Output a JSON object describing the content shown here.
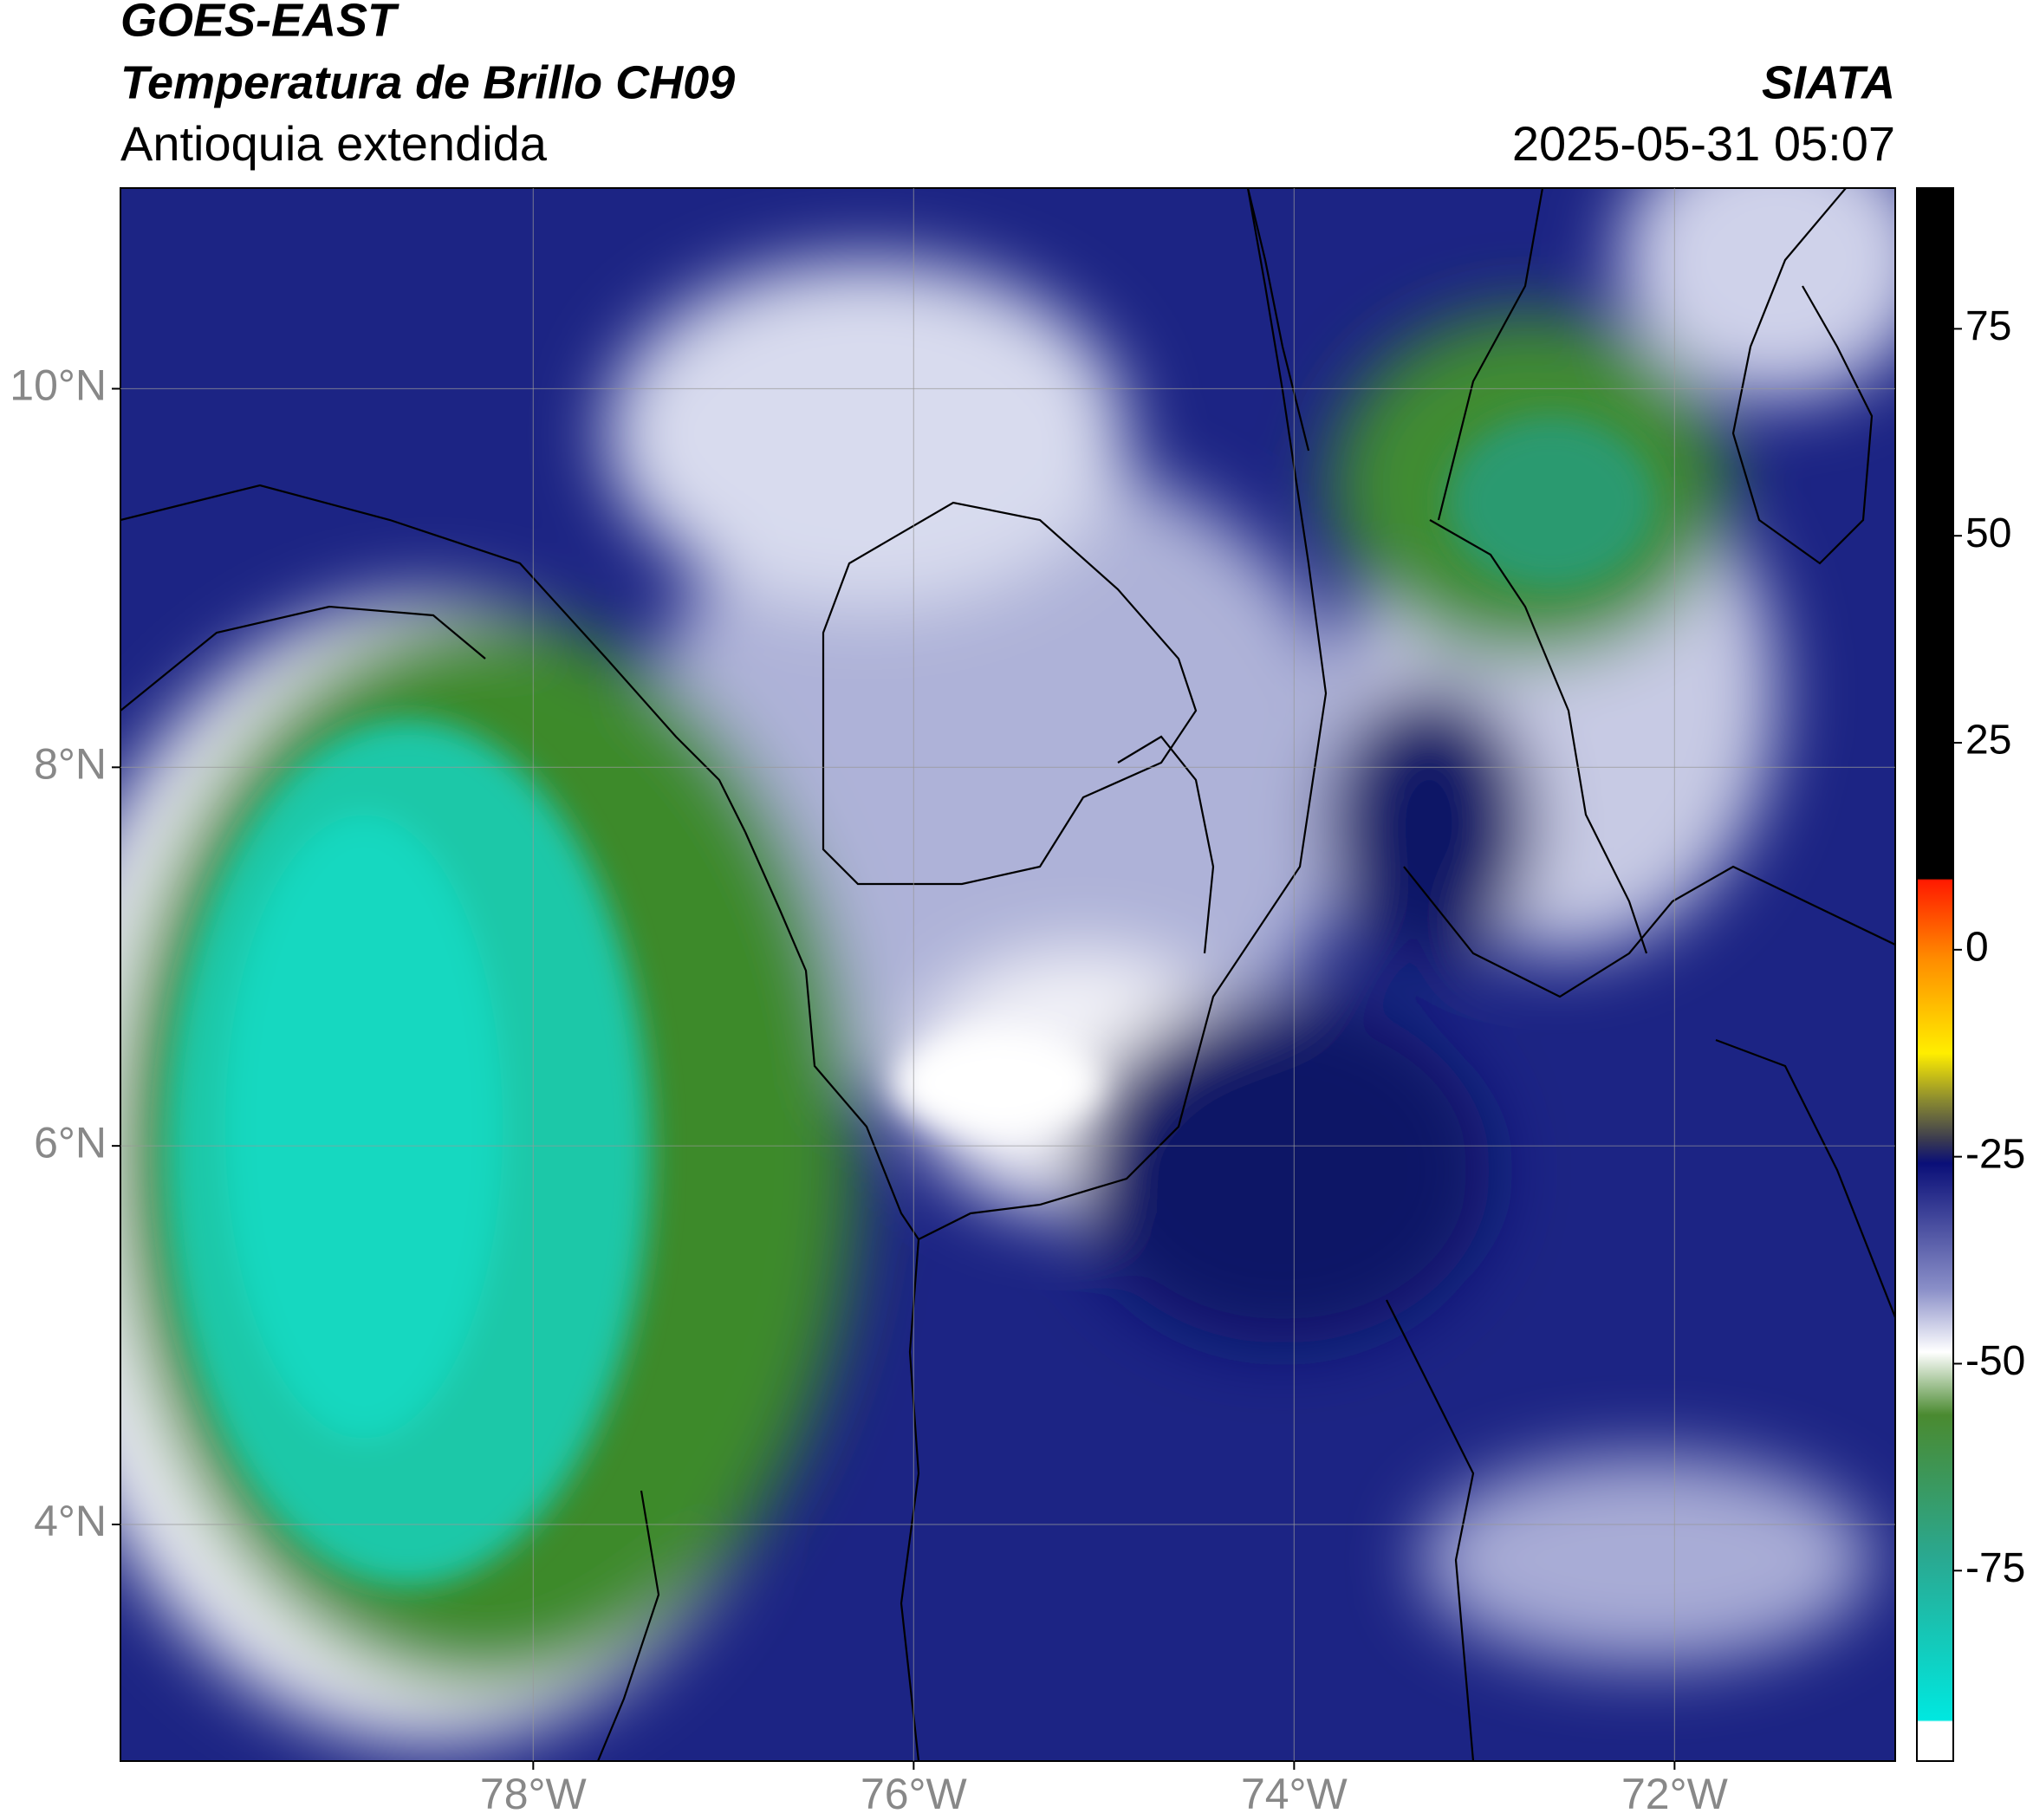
{
  "header": {
    "satellite": "GOES-EAST",
    "product": "Temperatura de Brillo CH09",
    "region": "Antioquia extendida",
    "source": "SIATA",
    "datetime": "2025-05-31 05:07"
  },
  "map": {
    "lat_range": [
      2.75,
      11.06
    ],
    "lon_range": [
      -80.17,
      -70.84
    ],
    "lat_ticks": [
      {
        "value": 4,
        "label": "4°N"
      },
      {
        "value": 6,
        "label": "6°N"
      },
      {
        "value": 8,
        "label": "8°N"
      },
      {
        "value": 10,
        "label": "10°N"
      }
    ],
    "lon_ticks": [
      {
        "value": -78,
        "label": "78°W"
      },
      {
        "value": -76,
        "label": "76°W"
      },
      {
        "value": -74,
        "label": "74°W"
      },
      {
        "value": -72,
        "label": "72°W"
      }
    ]
  },
  "colorbar": {
    "range": [
      -98,
      92
    ],
    "ticks": [
      -75,
      -50,
      -25,
      0,
      25,
      50,
      75
    ]
  }
}
